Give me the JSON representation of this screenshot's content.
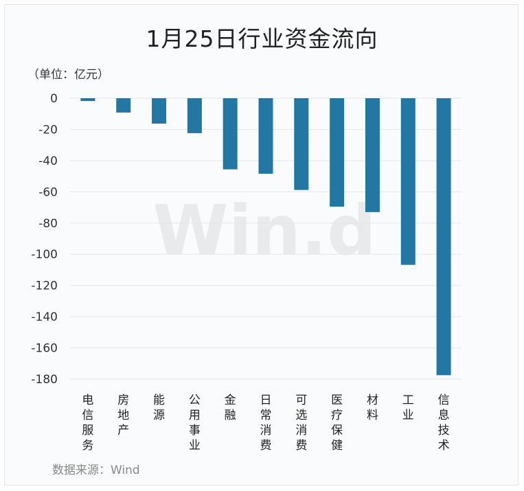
{
  "chart_data": {
    "type": "bar",
    "title": "1月25日行业资金流向",
    "unit_label": "（单位：亿元）",
    "source": "数据来源：Wind",
    "watermark": "Win.d",
    "categories": [
      "电信服务",
      "房地产",
      "能源",
      "公用事业",
      "金融",
      "日常消费",
      "可选消费",
      "医疗保健",
      "材料",
      "工业",
      "信息技术"
    ],
    "values": [
      -1.8,
      -9.2,
      -16.3,
      -22.4,
      -45.6,
      -48.4,
      -58.8,
      -69.5,
      -73.0,
      -106.8,
      -177.5
    ],
    "ylim": [
      -180,
      0
    ],
    "yticks": [
      0,
      -20,
      -40,
      -60,
      -80,
      -100,
      -120,
      -140,
      -160,
      -180
    ],
    "bar_color": "#2277a3",
    "grid": true
  }
}
